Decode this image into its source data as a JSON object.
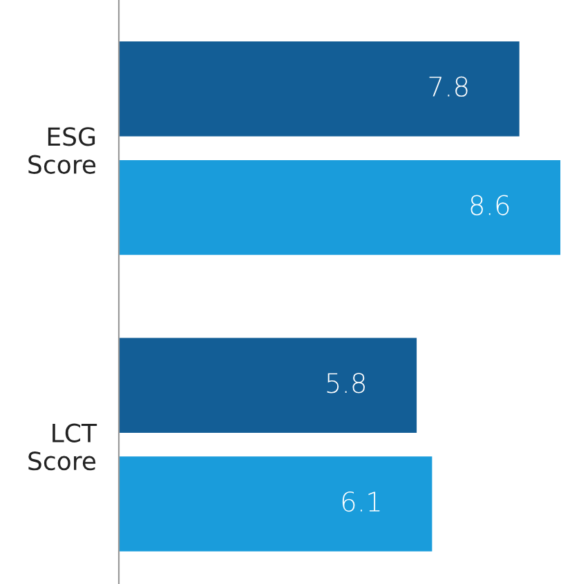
{
  "chart_data": {
    "type": "bar",
    "orientation": "horizontal",
    "categories": [
      "ESG\nScore",
      "LCT\nScore"
    ],
    "series": [
      {
        "color": "#135e96",
        "values": [
          7.8,
          5.8
        ]
      },
      {
        "color": "#1a9cdb",
        "values": [
          8.6,
          6.1
        ]
      }
    ],
    "xlim": [
      0,
      8.6
    ],
    "data_labels": true,
    "tick_labels": "y",
    "grid": false,
    "legend": false
  }
}
